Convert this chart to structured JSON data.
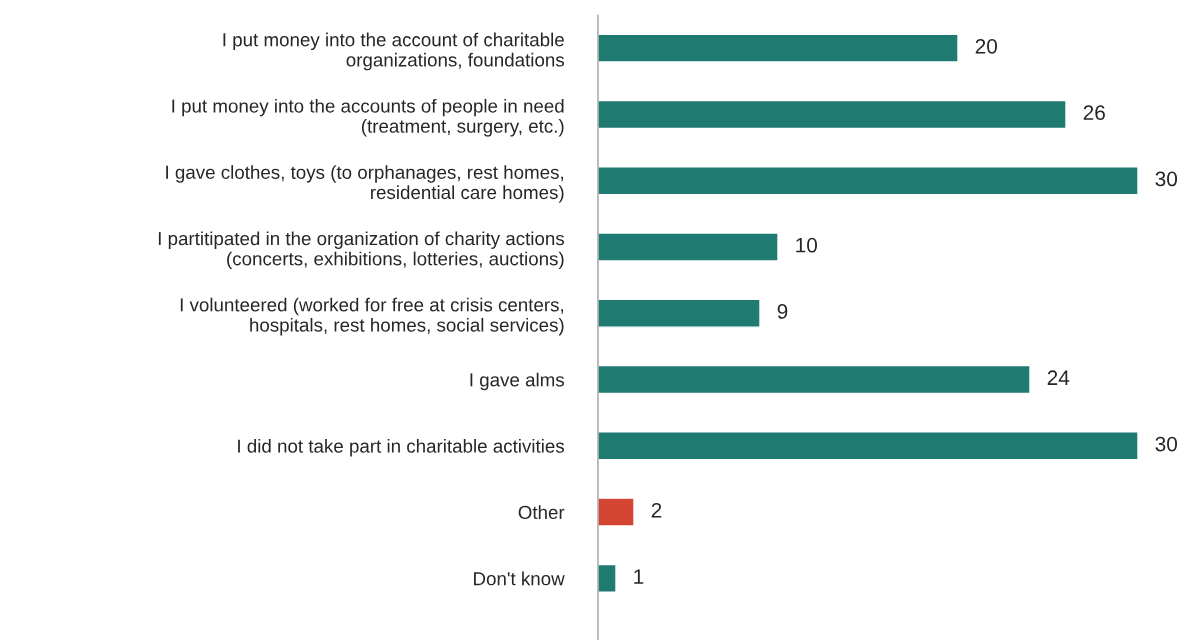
{
  "chart_data": {
    "type": "bar",
    "orientation": "horizontal",
    "categories": [
      "I put money into the account of charitable\norganizations, foundations",
      "I put money into the accounts of people in need\n(treatment, surgery, etc.)",
      "I gave clothes, toys (to orphanages, rest homes,\nresidential care homes)",
      "I partitipated in the organization of charity actions\n(concerts, exhibitions, lotteries, auctions)",
      "I volunteered (worked for free at crisis centers,\nhospitals, rest homes, social services)",
      "I gave alms",
      "I did not take part in charitable activities",
      "Other",
      "Don't know"
    ],
    "values": [
      20,
      26,
      30,
      10,
      9,
      24,
      30,
      2,
      1
    ],
    "colors": [
      "#1f7a72",
      "#1f7a72",
      "#1f7a72",
      "#1f7a72",
      "#1f7a72",
      "#1f7a72",
      "#1f7a72",
      "#d44433",
      "#1f7a72"
    ],
    "data_labels": true,
    "grid": false,
    "legend": false
  }
}
